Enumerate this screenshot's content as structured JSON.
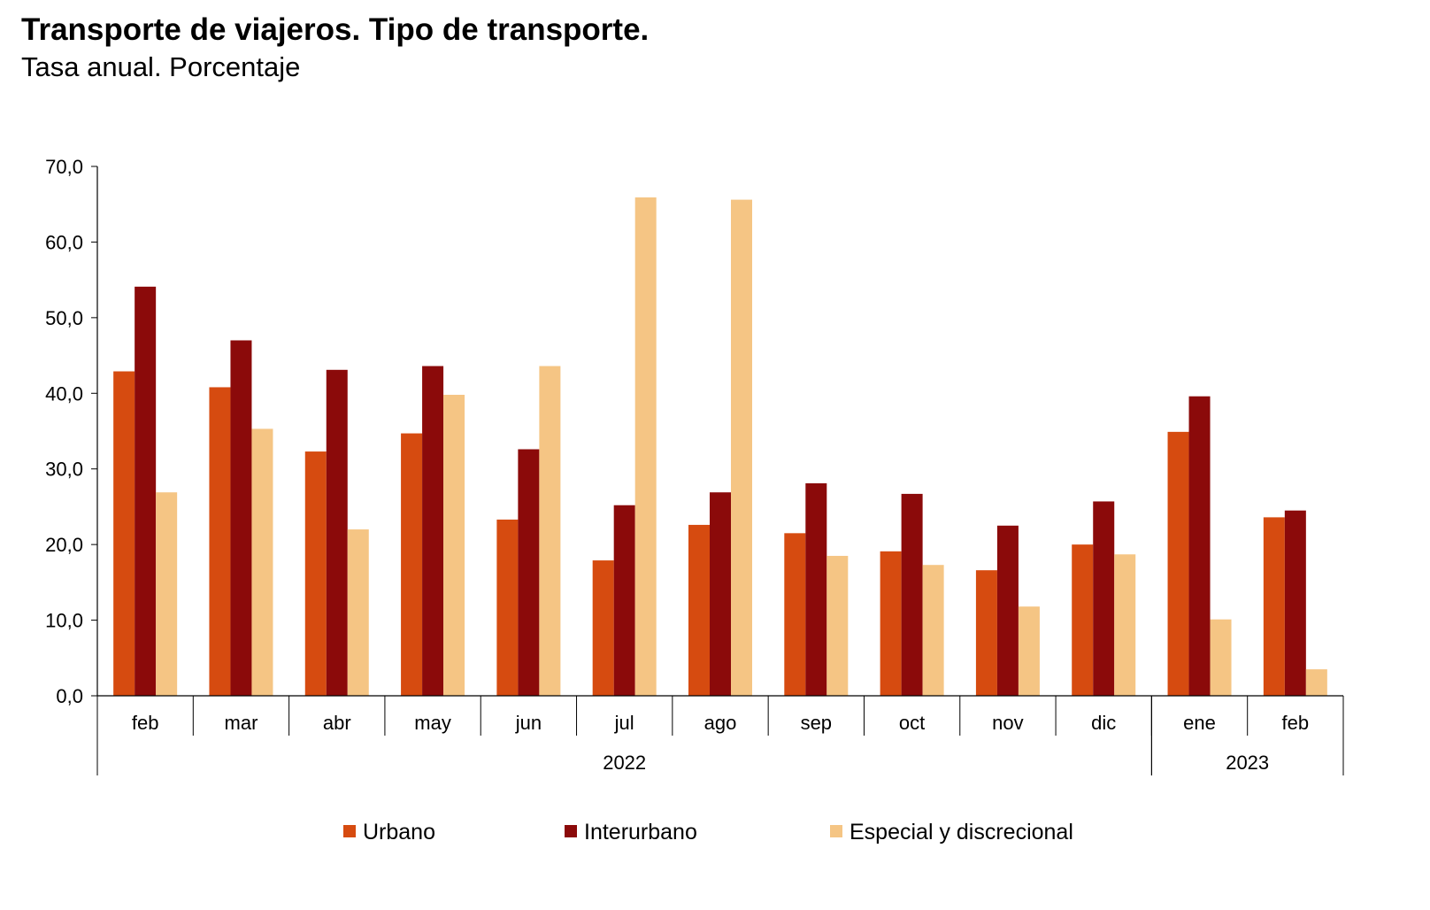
{
  "chart_data": {
    "type": "bar",
    "title": "Transporte de viajeros. Tipo de transporte.",
    "subtitle": "Tasa anual. Porcentaje",
    "categories": [
      "feb",
      "mar",
      "abr",
      "may",
      "jun",
      "jul",
      "ago",
      "sep",
      "oct",
      "nov",
      "dic",
      "ene",
      "feb"
    ],
    "year_groups": [
      {
        "label": "2022",
        "count": 11
      },
      {
        "label": "2023",
        "count": 2
      }
    ],
    "ylim": [
      0,
      70
    ],
    "yticks": [
      "0,0",
      "10,0",
      "20,0",
      "30,0",
      "40,0",
      "50,0",
      "60,0",
      "70,0"
    ],
    "grid": false,
    "legend_placement": "bottom",
    "series": [
      {
        "name": "Urbano",
        "color": "#d64b10",
        "values": [
          42.9,
          40.8,
          32.3,
          34.7,
          23.3,
          17.9,
          22.6,
          21.5,
          19.1,
          16.6,
          20.0,
          34.9,
          23.6
        ]
      },
      {
        "name": "Interurbano",
        "color": "#8b0a0a",
        "values": [
          54.1,
          47.0,
          43.1,
          43.6,
          32.6,
          25.2,
          26.9,
          28.1,
          26.7,
          22.5,
          25.7,
          39.6,
          24.5
        ]
      },
      {
        "name": "Especial y discrecional",
        "color": "#f5c584",
        "values": [
          26.9,
          35.3,
          22.0,
          39.8,
          43.6,
          65.9,
          65.6,
          18.5,
          17.3,
          11.8,
          18.7,
          10.1,
          3.5
        ]
      }
    ]
  }
}
